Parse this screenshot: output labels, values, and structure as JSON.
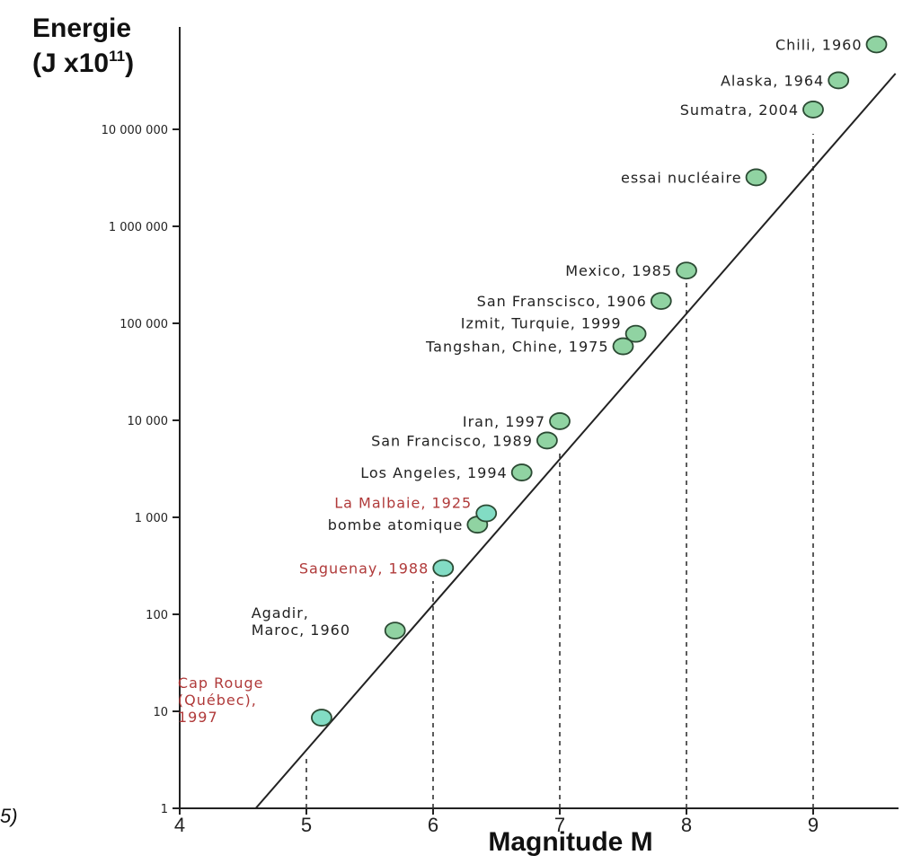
{
  "edge_fragment": "5)",
  "chart_data": {
    "type": "scatter",
    "title": "",
    "ylabel": {
      "line1": "Energie",
      "line2_main": "(J x10",
      "line2_exp": "11",
      "line2_close": ")"
    },
    "xlabel": "Magnitude M",
    "x_scale": "linear",
    "y_scale": "log",
    "xlim": [
      4,
      9.65
    ],
    "ylim": [
      1,
      100000000
    ],
    "x_ticks": [
      4,
      5,
      6,
      7,
      8,
      9
    ],
    "x_tick_labels": [
      "4",
      "5",
      "6",
      "7",
      "8",
      "9"
    ],
    "y_ticks": [
      1,
      10,
      100,
      1000,
      10000,
      100000,
      1000000,
      10000000
    ],
    "y_tick_labels": [
      "1",
      "10",
      "100",
      "1 000",
      "10 000",
      "100 000",
      "1 000 000",
      "10 000 000"
    ],
    "fit_line": {
      "slope_log10_per_magnitude": 1.5,
      "log10_energy_at_M4": -0.9
    },
    "dashed_guides": [
      {
        "x": 5,
        "y_top": 3.6
      },
      {
        "x": 6,
        "y_top": 220
      },
      {
        "x": 7,
        "y_top": 5000
      },
      {
        "x": 8,
        "y_top": 300000
      },
      {
        "x": 9,
        "y_top": 9000000
      }
    ],
    "series": [
      {
        "points": [
          {
            "label": "Chili, 1960",
            "x": 9.5,
            "y": 75000000,
            "color": "#90d3a2",
            "label_color": "#222222",
            "label_pos": "left"
          },
          {
            "label": "Alaska, 1964",
            "x": 9.2,
            "y": 32000000,
            "color": "#90d3a2",
            "label_color": "#222222",
            "label_pos": "left"
          },
          {
            "label": "Sumatra, 2004",
            "x": 9.0,
            "y": 16000000,
            "color": "#90d3a2",
            "label_color": "#222222",
            "label_pos": "left"
          },
          {
            "label": "essai nucléaire",
            "x": 8.55,
            "y": 3200000,
            "color": "#90d3a2",
            "label_color": "#222222",
            "label_pos": "left"
          },
          {
            "label": "Mexico, 1985",
            "x": 8.0,
            "y": 350000,
            "color": "#90d3a2",
            "label_color": "#222222",
            "label_pos": "left"
          },
          {
            "label": "San Franscisco, 1906",
            "x": 7.8,
            "y": 170000,
            "color": "#90d3a2",
            "label_color": "#222222",
            "label_pos": "left"
          },
          {
            "label": "Izmit, Turquie, 1999",
            "x": 7.6,
            "y": 78000,
            "color": "#90d3a2",
            "label_color": "#222222",
            "label_pos": "left-up"
          },
          {
            "label": "Tangshan, Chine, 1975",
            "x": 7.5,
            "y": 58000,
            "color": "#90d3a2",
            "label_color": "#222222",
            "label_pos": "left"
          },
          {
            "label": "Iran, 1997",
            "x": 7.0,
            "y": 9800,
            "color": "#90d3a2",
            "label_color": "#222222",
            "label_pos": "left"
          },
          {
            "label": "San Francisco, 1989",
            "x": 6.9,
            "y": 6200,
            "color": "#90d3a2",
            "label_color": "#222222",
            "label_pos": "left"
          },
          {
            "label": "Los Angeles, 1994",
            "x": 6.7,
            "y": 2900,
            "color": "#90d3a2",
            "label_color": "#222222",
            "label_pos": "left"
          },
          {
            "label": "bombe atomique",
            "x": 6.35,
            "y": 840,
            "color": "#90d3a2",
            "label_color": "#222222",
            "label_pos": "left"
          },
          {
            "label": "La Malbaie, 1925",
            "x": 6.42,
            "y": 1100,
            "color": "#82dcc4",
            "label_color": "#b03a3a",
            "label_pos": "left-up"
          },
          {
            "label": "Saguenay, 1988",
            "x": 6.08,
            "y": 300,
            "color": "#82dcc4",
            "label_color": "#b03a3a",
            "label_pos": "left"
          },
          {
            "label": "Agadir,\nMaroc, 1960",
            "x": 5.7,
            "y": 68,
            "color": "#90d3a2",
            "label_color": "#222222",
            "label_pos": "left-block"
          },
          {
            "label": "Cap Rouge\n(Québec),\n1997",
            "x": 5.12,
            "y": 8.6,
            "color": "#82dcc4",
            "label_color": "#b03a3a",
            "label_pos": "left-block"
          }
        ]
      }
    ]
  }
}
